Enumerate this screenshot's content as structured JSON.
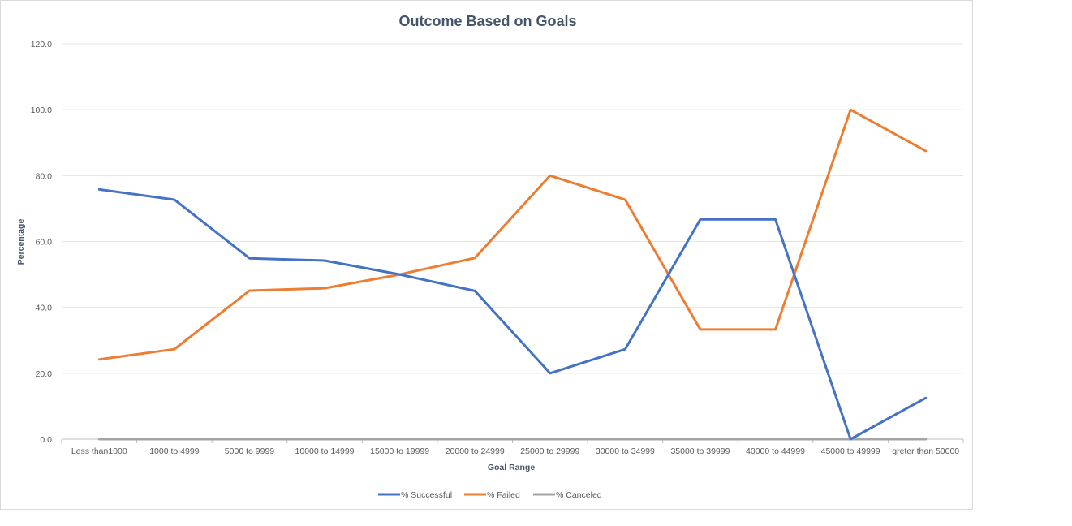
{
  "chart_data": {
    "type": "line",
    "title": "Outcome Based on Goals",
    "xlabel": "Goal Range",
    "ylabel": "Percentage",
    "ylim": [
      0,
      120
    ],
    "yticks": [
      "0.0",
      "20.0",
      "40.0",
      "60.0",
      "80.0",
      "100.0",
      "120.0"
    ],
    "grid": true,
    "legend_position": "bottom",
    "categories": [
      "Less than1000",
      "1000 to 4999",
      "5000 to 9999",
      "10000 to 14999",
      "15000 to 19999",
      "20000 to 24999",
      "25000 to 29999",
      "30000 to 34999",
      "35000 to 39999",
      "40000 to 44999",
      "45000 to 49999",
      "greter than 50000"
    ],
    "series": [
      {
        "name": "% Successful",
        "color": "#4472c4",
        "values": [
          75.8,
          72.7,
          54.9,
          54.2,
          50.0,
          45.0,
          20.0,
          27.3,
          66.7,
          66.7,
          0.0,
          12.5
        ]
      },
      {
        "name": "% Failed",
        "color": "#ed7d31",
        "values": [
          24.2,
          27.3,
          45.1,
          45.8,
          50.0,
          55.0,
          80.0,
          72.7,
          33.3,
          33.3,
          100.0,
          87.5
        ]
      },
      {
        "name": "% Canceled",
        "color": "#a5a5a5",
        "values": [
          0,
          0,
          0,
          0,
          0,
          0,
          0,
          0,
          0,
          0,
          0,
          0
        ]
      }
    ]
  }
}
